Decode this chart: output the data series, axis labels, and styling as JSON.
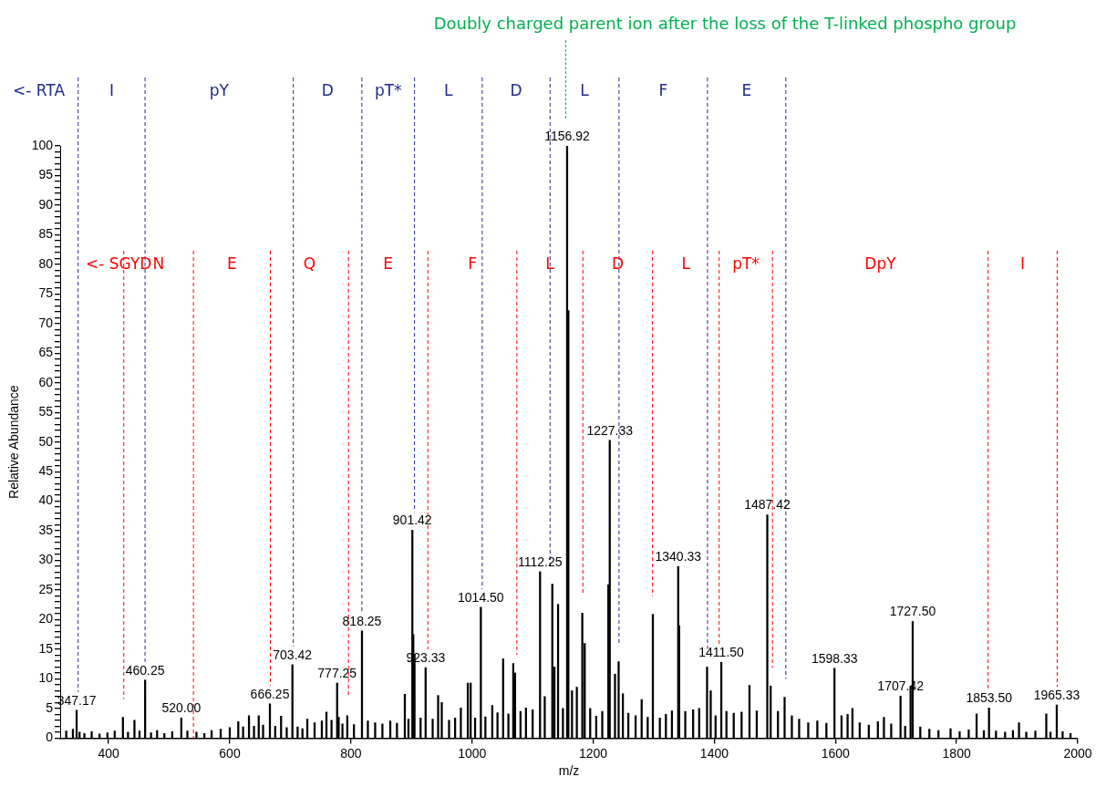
{
  "chart_data": {
    "type": "bar",
    "xlabel": "m/z",
    "ylabel": "Relative Abundance",
    "color": "#000000",
    "x": [
      330,
      341,
      347.17,
      352,
      360,
      372,
      385,
      398,
      410,
      423.6,
      432,
      442.6,
      451,
      460.25,
      470,
      480,
      492,
      505,
      520,
      530,
      545,
      558,
      570,
      585,
      600,
      614,
      622,
      631.7,
      640,
      647.8,
      655,
      666.25,
      675,
      684.7,
      694,
      702,
      703.42,
      712,
      720,
      728,
      740,
      752,
      759.6,
      768,
      777.25,
      779.8,
      786,
      794,
      805,
      818.25,
      828,
      840,
      852,
      865,
      876,
      889,
      895,
      901.42,
      903,
      905,
      915,
      923.33,
      935,
      944,
      950,
      962,
      972,
      981.5,
      993,
      997.7,
      1005,
      1014.5,
      1022,
      1033.4,
      1042,
      1051.3,
      1060,
      1068,
      1071,
      1080,
      1089,
      1100,
      1110,
      1112.25,
      1120,
      1132.5,
      1136,
      1142,
      1150,
      1156.92,
      1159,
      1165,
      1173,
      1182,
      1186,
      1195,
      1205,
      1215,
      1225,
      1227.33,
      1236,
      1242,
      1249,
      1258,
      1270,
      1280,
      1290,
      1298.5,
      1310,
      1320,
      1330,
      1340.33,
      1342,
      1352,
      1365,
      1375,
      1388,
      1394,
      1402,
      1411.5,
      1420,
      1432,
      1445,
      1458,
      1470,
      1485,
      1487.42,
      1493,
      1505,
      1516,
      1528,
      1540,
      1555,
      1570,
      1585,
      1598.33,
      1610,
      1620,
      1628,
      1640,
      1655,
      1670,
      1680,
      1692,
      1707.42,
      1715,
      1724,
      1727.5,
      1740,
      1755,
      1770,
      1790,
      1805,
      1820,
      1833,
      1845,
      1853.5,
      1865,
      1880,
      1893,
      1903,
      1915,
      1930,
      1948,
      1955,
      1965.33,
      1975,
      1988
    ],
    "values": [
      1.2,
      1.5,
      4.7,
      1.0,
      0.8,
      1.1,
      0.7,
      0.9,
      1.2,
      3.5,
      1.0,
      3.0,
      1.2,
      9.8,
      0.9,
      1.3,
      0.8,
      1.1,
      3.4,
      1.2,
      1.0,
      0.8,
      1.3,
      1.5,
      1.8,
      2.8,
      1.9,
      3.8,
      2.0,
      3.8,
      2.2,
      5.8,
      2.0,
      3.7,
      1.8,
      null,
      12.4,
      1.9,
      1.6,
      3.2,
      2.6,
      2.9,
      4.4,
      3.0,
      9.3,
      3.5,
      2.4,
      3.8,
      2.3,
      18.1,
      2.9,
      2.6,
      2.4,
      2.9,
      2.5,
      7.4,
      3.2,
      35.1,
      17.5,
      14.1,
      3.4,
      11.9,
      3.2,
      7.2,
      6.0,
      3.0,
      3.4,
      5.1,
      9.3,
      9.3,
      3.4,
      22.1,
      3.6,
      5.5,
      4.3,
      13.4,
      4.1,
      12.6,
      11.0,
      4.5,
      5.1,
      4.8,
      null,
      28.1,
      7.0,
      26.0,
      12.0,
      22.6,
      5.0,
      100,
      72.2,
      8.0,
      8.6,
      21.1,
      16.0,
      5.0,
      3.7,
      4.5,
      25.9,
      50.3,
      10.8,
      12.9,
      7.5,
      4.2,
      3.8,
      6.5,
      3.5,
      20.9,
      3.4,
      4.0,
      4.6,
      29.0,
      19.0,
      4.5,
      4.8,
      5.0,
      12.0,
      8.0,
      3.8,
      12.8,
      4.5,
      4.2,
      4.4,
      8.9,
      4.6,
      null,
      37.7,
      8.8,
      4.5,
      6.9,
      3.8,
      3.2,
      2.6,
      2.9,
      2.5,
      11.8,
      3.8,
      4.0,
      5.0,
      2.6,
      2.2,
      2.8,
      3.5,
      2.4,
      7.1,
      2.0,
      8.8,
      19.7,
      1.9,
      1.5,
      1.3,
      1.6,
      1.1,
      1.4,
      4.1,
      1.3,
      5.1,
      1.2,
      1.0,
      1.3,
      2.6,
      1.0,
      1.2,
      4.1,
      1.0,
      5.6,
      1.1,
      0.8
    ],
    "xlim": [
      320,
      2000
    ],
    "xticks": [
      400,
      600,
      800,
      1000,
      1200,
      1400,
      1600,
      1800,
      2000
    ],
    "ylim": [
      0,
      100
    ],
    "yticks": [
      0,
      {
        "value": 1,
        "label": null
      },
      {
        "value": 2,
        "label": null
      },
      {
        "value": 3,
        "label": null
      },
      {
        "value": 4,
        "label": null
      },
      5,
      {
        "value": 6,
        "label": null
      },
      {
        "value": 7,
        "label": null
      },
      {
        "value": 8,
        "label": null
      },
      {
        "value": 9,
        "label": null
      },
      10,
      {
        "value": 11,
        "label": null
      },
      {
        "value": 12,
        "label": null
      },
      {
        "value": 13,
        "label": null
      },
      {
        "value": 14,
        "label": null
      },
      15,
      {
        "value": 16,
        "label": null
      },
      {
        "value": 17,
        "label": null
      },
      {
        "value": 18,
        "label": null
      },
      {
        "value": 19,
        "label": null
      },
      20,
      {
        "value": 21,
        "label": null
      },
      {
        "value": 22,
        "label": null
      },
      {
        "value": 23,
        "label": null
      },
      {
        "value": 24,
        "label": null
      },
      25,
      {
        "value": 26,
        "label": null
      },
      {
        "value": 27,
        "label": null
      },
      {
        "value": 28,
        "label": null
      },
      {
        "value": 29,
        "label": null
      },
      30,
      {
        "value": 31,
        "label": null
      },
      {
        "value": 32,
        "label": null
      },
      {
        "value": 33,
        "label": null
      },
      {
        "value": 34,
        "label": null
      },
      35,
      {
        "value": 36,
        "label": null
      },
      {
        "value": 37,
        "label": null
      },
      {
        "value": 38,
        "label": null
      },
      {
        "value": 39,
        "label": null
      },
      40,
      {
        "value": 41,
        "label": null
      },
      {
        "value": 42,
        "label": null
      },
      {
        "value": 43,
        "label": null
      },
      {
        "value": 44,
        "label": null
      },
      45,
      {
        "value": 46,
        "label": null
      },
      {
        "value": 47,
        "label": null
      },
      {
        "value": 48,
        "label": null
      },
      {
        "value": 49,
        "label": null
      },
      50,
      {
        "value": 51,
        "label": null
      },
      {
        "value": 52,
        "label": null
      },
      {
        "value": 53,
        "label": null
      },
      {
        "value": 54,
        "label": null
      },
      55,
      {
        "value": 56,
        "label": null
      },
      {
        "value": 57,
        "label": null
      },
      {
        "value": 58,
        "label": null
      },
      {
        "value": 59,
        "label": null
      },
      60,
      {
        "value": 61,
        "label": null
      },
      {
        "value": 62,
        "label": null
      },
      {
        "value": 63,
        "label": null
      },
      {
        "value": 64,
        "label": null
      },
      65,
      {
        "value": 66,
        "label": null
      },
      {
        "value": 67,
        "label": null
      },
      {
        "value": 68,
        "label": null
      },
      {
        "value": 69,
        "label": null
      },
      70,
      {
        "value": 71,
        "label": null
      },
      {
        "value": 72,
        "label": null
      },
      {
        "value": 73,
        "label": null
      },
      {
        "value": 74,
        "label": null
      },
      75,
      {
        "value": 76,
        "label": null
      },
      {
        "value": 77,
        "label": null
      },
      {
        "value": 78,
        "label": null
      },
      {
        "value": 79,
        "label": null
      },
      80,
      {
        "value": 81,
        "label": null
      },
      {
        "value": 82,
        "label": null
      },
      {
        "value": 83,
        "label": null
      },
      {
        "value": 84,
        "label": null
      },
      85,
      {
        "value": 86,
        "label": null
      },
      {
        "value": 87,
        "label": null
      },
      {
        "value": 88,
        "label": null
      },
      {
        "value": 89,
        "label": null
      },
      90,
      {
        "value": 91,
        "label": null
      },
      {
        "value": 92,
        "label": null
      },
      {
        "value": 93,
        "label": null
      },
      {
        "value": 94,
        "label": null
      },
      95,
      {
        "value": 96,
        "label": null
      },
      {
        "value": 97,
        "label": null
      },
      {
        "value": 98,
        "label": null
      },
      {
        "value": 99,
        "label": null
      },
      100
    ],
    "grid": false,
    "legend": false,
    "ref_lines": [
      {
        "axis": "x",
        "value": 349.7,
        "label": "I",
        "color": "#1f2a8a",
        "line_style": "dashed"
      },
      {
        "axis": "x",
        "value": 460.1,
        "label": "pY",
        "color": "#1f2a8a",
        "line_style": "dashed"
      },
      {
        "axis": "x",
        "value": 704.9,
        "label": "D",
        "color": "#1f2a8a",
        "line_style": "dashed"
      },
      {
        "axis": "x",
        "value": 818.1,
        "label": "pT*",
        "color": "#1f2a8a",
        "line_style": "dashed"
      },
      {
        "axis": "x",
        "value": 905,
        "label": "L",
        "color": "#1f2a8a",
        "line_style": "dashed"
      },
      {
        "axis": "x",
        "value": 1016.8,
        "label": "D",
        "color": "#1f2a8a",
        "line_style": "dashed"
      },
      {
        "axis": "x",
        "value": 1128.8,
        "label": "L",
        "color": "#1f2a8a",
        "line_style": "dashed"
      },
      {
        "axis": "x",
        "value": 1242.6,
        "label": "F",
        "color": "#1f2a8a",
        "line_style": "dashed"
      },
      {
        "axis": "x",
        "value": 1388.7,
        "label": "E",
        "color": "#1f2a8a",
        "line_style": "dashed"
      },
      {
        "axis": "x",
        "value": 1518,
        "color": "#1f2a8a",
        "line_style": "dashed"
      },
      {
        "axis": "x",
        "value": 425,
        "label": "N",
        "color": "#ff0000",
        "line_style": "dashed"
      },
      {
        "axis": "x",
        "value": 540,
        "label": "E",
        "color": "#ff0000",
        "line_style": "dashed"
      },
      {
        "axis": "x",
        "value": 667,
        "label": "Q",
        "color": "#ff0000",
        "line_style": "dashed"
      },
      {
        "axis": "x",
        "value": 796,
        "label": "E",
        "color": "#ff0000",
        "line_style": "dashed"
      },
      {
        "axis": "x",
        "value": 927,
        "label": "F",
        "color": "#ff0000",
        "line_style": "dashed"
      },
      {
        "axis": "x",
        "value": 1074,
        "label": "L",
        "color": "#ff0000",
        "line_style": "dashed"
      },
      {
        "axis": "x",
        "value": 1183,
        "label": "D",
        "color": "#ff0000",
        "line_style": "dashed"
      },
      {
        "axis": "x",
        "value": 1298,
        "label": "L",
        "color": "#ff0000",
        "line_style": "dashed"
      },
      {
        "axis": "x",
        "value": 1408,
        "label": "pT*",
        "color": "#ff0000",
        "line_style": "dashed"
      },
      {
        "axis": "x",
        "value": 1496,
        "label": "DpY",
        "color": "#ff0000",
        "line_style": "dashed"
      },
      {
        "axis": "x",
        "value": 1852,
        "label": "I",
        "color": "#ff0000",
        "line_style": "dashed"
      },
      {
        "axis": "x",
        "value": 1966,
        "color": "#ff0000",
        "line_style": "dashed"
      }
    ],
    "annotations": [
      "Doubly charged parent ion after the loss of the T-linked phospho group",
      "<- RTA",
      "<- SGYD",
      {
        "text": "347.17",
        "x": 347.17,
        "y": 4.7
      },
      {
        "text": "460.25",
        "x": 460.25,
        "y": 9.8
      },
      {
        "text": "520.00",
        "x": 520,
        "y": 3.4
      },
      {
        "text": "666.25",
        "x": 666.25,
        "y": 5.8
      },
      {
        "text": "703.42",
        "x": 703.42,
        "y": 12.4
      },
      {
        "text": "777.25",
        "x": 777.25,
        "y": 9.3
      },
      {
        "text": "818.25",
        "x": 818.25,
        "y": 18.1
      },
      {
        "text": "901.42",
        "x": 901.42,
        "y": 35.1
      },
      {
        "text": "923.33",
        "x": 923.33,
        "y": 11.9
      },
      {
        "text": "1014.50",
        "x": 1014.5,
        "y": 22.1
      },
      {
        "text": "1112.25",
        "x": 1112.25,
        "y": 28.1
      },
      {
        "text": "1156.92",
        "x": 1156.92,
        "y": 100
      },
      {
        "text": "1227.33",
        "x": 1227.33,
        "y": 50.3
      },
      {
        "text": "1340.33",
        "x": 1340.33,
        "y": 29.0
      },
      {
        "text": "1411.50",
        "x": 1411.5,
        "y": 12.8
      },
      {
        "text": "1487.42",
        "x": 1487.42,
        "y": 37.7
      },
      {
        "text": "1598.33",
        "x": 1598.33,
        "y": 11.8
      },
      {
        "text": "1707.42",
        "x": 1707.42,
        "y": 7.1
      },
      {
        "text": "1727.50",
        "x": 1727.5,
        "y": 19.7
      },
      {
        "text": "1853.50",
        "x": 1853.5,
        "y": 5.1
      },
      {
        "text": "1965.33",
        "x": 1965.33,
        "y": 5.6
      }
    ]
  }
}
